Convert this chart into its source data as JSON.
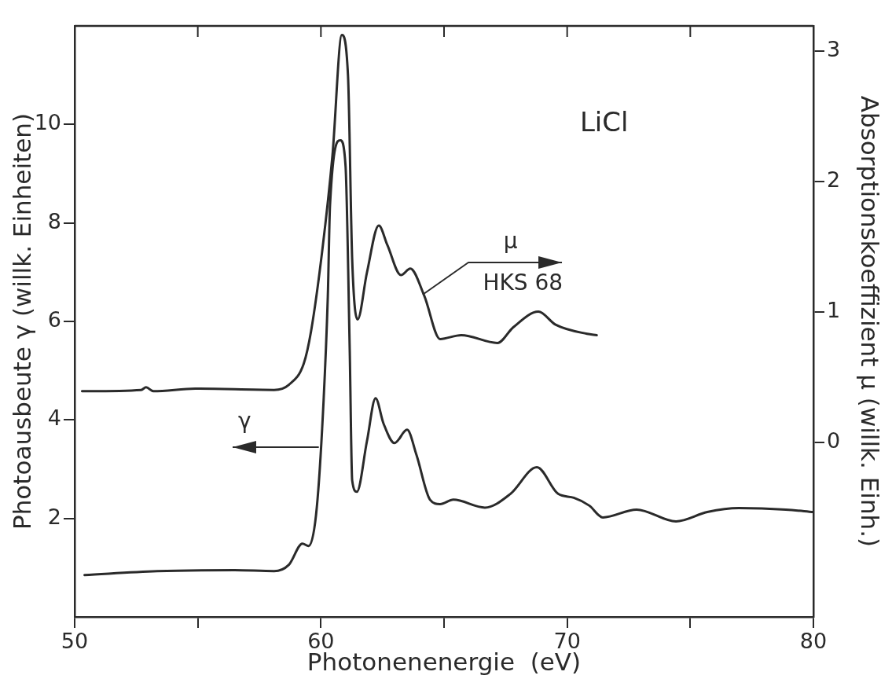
{
  "chart_data": {
    "type": "line",
    "xlabel": "Photonenenergie  (eV)",
    "ylabel": "Photoausbeute γ (willk. Einheiten)",
    "y2label": "Absorptionskoeffizient μ (willk. Einh.)",
    "annotations": [
      "LiCl",
      "μ",
      {
        "text": "HKS 68",
        "x": 64.15,
        "y": 6.55
      },
      {
        "text": "γ",
        "x": 59.9,
        "y": 3.45
      }
    ],
    "xlim": [
      50,
      80
    ],
    "xticks": [
      50,
      {
        "value": 55,
        "label": null
      },
      60,
      {
        "value": 65,
        "label": null
      },
      70,
      {
        "value": 75,
        "label": null
      },
      80
    ],
    "ylim": [
      0,
      12
    ],
    "yticks": [
      2,
      4,
      6,
      8,
      10
    ],
    "y2lim": [
      -1.34,
      3.19
    ],
    "y2ticks": [
      0,
      1,
      2,
      3
    ],
    "grid": false,
    "legend": false,
    "marker": "none",
    "line_style": "solid",
    "series": [
      {
        "color": "#2a2a2a",
        "x": [
          50.4,
          53.35,
          56.5,
          58.1,
          58.7,
          59.25,
          59.5,
          59.8,
          60.05,
          60.28,
          60.37,
          60.79,
          61.0,
          61.17,
          61.27,
          61.46,
          61.87,
          62.22,
          62.54,
          62.99,
          63.5,
          63.88,
          64.43,
          64.84,
          65.38,
          66.66,
          67.7,
          68.77,
          69.63,
          70.27,
          70.9,
          71.45,
          72.82,
          74.42,
          75.69,
          76.97,
          78.88,
          80.0
        ],
        "values": [
          0.85,
          0.93,
          0.95,
          0.93,
          1.06,
          1.49,
          1.44,
          2.06,
          3.82,
          6.5,
          8.36,
          9.68,
          9.16,
          5.42,
          2.77,
          2.54,
          3.57,
          4.44,
          3.93,
          3.53,
          3.8,
          3.29,
          2.38,
          2.29,
          2.38,
          2.22,
          2.5,
          3.04,
          2.5,
          2.42,
          2.26,
          2.02,
          2.18,
          1.94,
          2.13,
          2.21,
          2.18,
          2.13
        ]
      },
      {
        "color": "#2a2a2a",
        "axis": "y2",
        "x": [
          50.3,
          52.7,
          52.9,
          53.2,
          54.9,
          58.1,
          58.7,
          59.3,
          59.6,
          60.05,
          60.47,
          60.85,
          61.1,
          61.27,
          61.49,
          61.87,
          62.35,
          62.7,
          63.25,
          63.63,
          64.2,
          64.84,
          65.7,
          67.17,
          67.81,
          68.83,
          69.53,
          70.81,
          71.2
        ],
        "values": [
          0.39,
          0.4,
          0.42,
          0.39,
          0.41,
          0.4,
          0.44,
          0.6,
          0.85,
          1.46,
          2.2,
          3.12,
          2.81,
          1.4,
          0.94,
          1.3,
          1.66,
          1.51,
          1.28,
          1.33,
          1.12,
          0.79,
          0.82,
          0.76,
          0.88,
          1.0,
          0.9,
          0.83,
          0.82
        ]
      }
    ]
  }
}
